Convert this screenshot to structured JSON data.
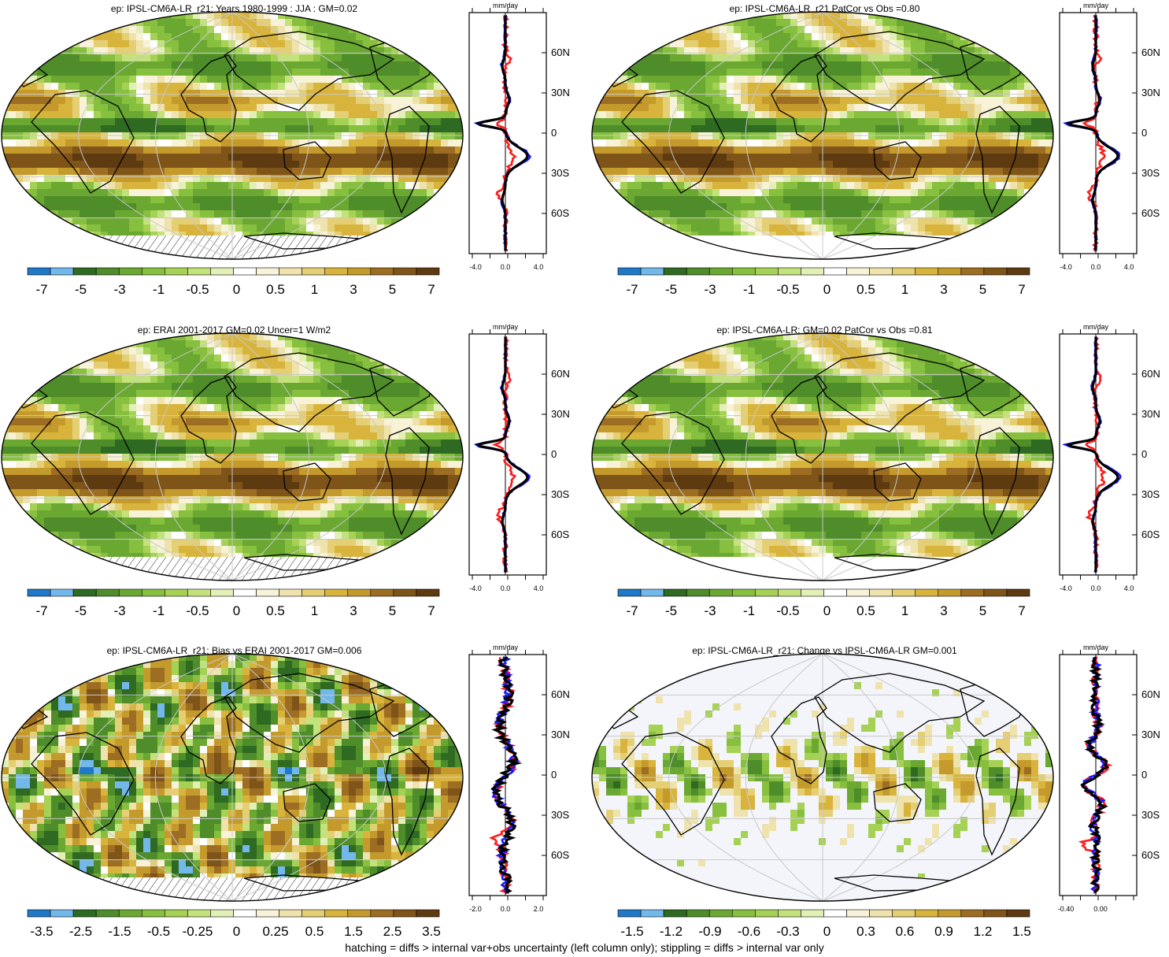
{
  "palette": [
    "#1f78c8",
    "#73b8ea",
    "#2f6a22",
    "#4e8d2a",
    "#6aa832",
    "#87bf3f",
    "#a5d155",
    "#c4e27c",
    "#e2f0b8",
    "#ffffff",
    "#f7f2d8",
    "#efe3ad",
    "#e4cf74",
    "#d8b43c",
    "#c59a2d",
    "#9c6d22",
    "#7f5418",
    "#5e3a10"
  ],
  "hatch_note": "hatching = diffs > internal var+obs uncertainty (left column only); stippling = diffs > internal var only",
  "lat_labels": [
    "60N",
    "30N",
    "0",
    "30S",
    "60S"
  ],
  "panels": [
    {
      "id": "p1",
      "title": "ep: IPSL-CM6A-LR_r21: Years 1980-1999 : JJA : GM=0.02",
      "cb_labels": [
        "-7",
        "-5",
        "-3",
        "-1",
        "-0.5",
        "0",
        "0.5",
        "1",
        "3",
        "5",
        "7"
      ],
      "profile_unit": "mm/day",
      "profile_ticks": [
        "-4.0",
        "0.0",
        "4.0"
      ],
      "line_colors": {
        "red": "#ff1a1a",
        "blue": "#1a1aff",
        "black": "#000000"
      },
      "show_hatching": true
    },
    {
      "id": "p2",
      "title": "ep: IPSL-CM6A-LR_r21 PatCor vs Obs =0.80",
      "cb_labels": [
        "-7",
        "-5",
        "-3",
        "-1",
        "-0.5",
        "0",
        "0.5",
        "1",
        "3",
        "5",
        "7"
      ],
      "profile_unit": "mm/day",
      "profile_ticks": [
        "-4.0",
        "0.0",
        "4.0"
      ],
      "line_colors": {
        "red": "#ff1a1a",
        "blue": "#1a1aff",
        "black": "#000000"
      },
      "show_hatching": false
    },
    {
      "id": "p3",
      "title": "ep: ERAI 2001-2017 GM=0.02 Uncer=1 W/m2",
      "cb_labels": [
        "-7",
        "-5",
        "-3",
        "-1",
        "-0.5",
        "0",
        "0.5",
        "1",
        "3",
        "5",
        "7"
      ],
      "profile_unit": "mm/day",
      "profile_ticks": [
        "-4.0",
        "0.0",
        "4.0"
      ],
      "line_colors": {
        "red": "#ff1a1a",
        "blue": "#1a1aff",
        "black": "#000000"
      },
      "show_hatching": true
    },
    {
      "id": "p4",
      "title": "ep: IPSL-CM6A-LR: GM=0.02 PatCor vs Obs =0.81",
      "cb_labels": [
        "-7",
        "-5",
        "-3",
        "-1",
        "-0.5",
        "0",
        "0.5",
        "1",
        "3",
        "5",
        "7"
      ],
      "profile_unit": "mm/day",
      "profile_ticks": [
        "-4.0",
        "0.0",
        "4.0"
      ],
      "line_colors": {
        "red": "#ff1a1a",
        "blue": "#1a1aff",
        "black": "#000000"
      },
      "show_hatching": false
    },
    {
      "id": "p5",
      "title": "ep: IPSL-CM6A-LR_r21: Bias vs ERAI 2001-2017 GM=0.006",
      "cb_labels": [
        "-3.5",
        "-2.5",
        "-1.5",
        "-0.5",
        "-0.25",
        "0",
        "0.25",
        "0.5",
        "1.5",
        "2.5",
        "3.5"
      ],
      "profile_unit": "mm/day",
      "profile_ticks": [
        "-2.0",
        "0.0",
        "2.0"
      ],
      "line_colors": {
        "red": "#ff1a1a",
        "blue": "#1a1aff",
        "black": "#000000"
      },
      "show_hatching": true
    },
    {
      "id": "p6",
      "title": "ep: IPSL-CM6A-LR_r21: Change vs IPSL-CM6A-LR GM=0.001",
      "cb_labels": [
        "-1.5",
        "-1.2",
        "-0.9",
        "-0.6",
        "-0.3",
        "0",
        "0.3",
        "0.6",
        "0.9",
        "1.2",
        "1.5"
      ],
      "profile_unit": "mm/day",
      "profile_ticks": [
        "-0.40",
        "0.00"
      ],
      "line_colors": {
        "red": "#ff1a1a",
        "blue": "#1a1aff",
        "black": "#000000"
      },
      "show_hatching": false
    }
  ]
}
